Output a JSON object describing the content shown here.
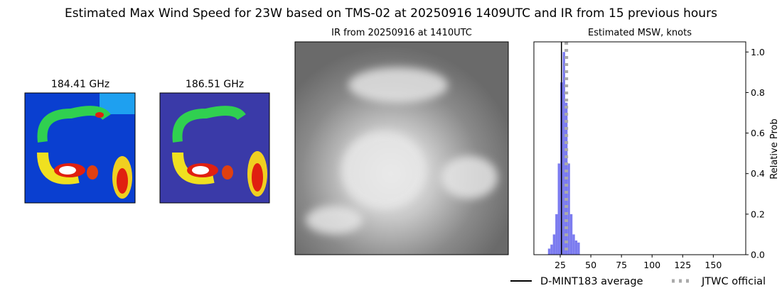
{
  "figure_title": "Estimated Max Wind Speed for 23W based on TMS-02 at 20250916 1409UTC and IR from 15 previous hours",
  "panels": [
    {
      "title": "184.41 GHz"
    },
    {
      "title": "186.51 GHz"
    },
    {
      "title": "IR from 20250916 at 1410UTC"
    }
  ],
  "chart_data": {
    "type": "histogram",
    "title": "Estimated MSW, knots",
    "y_label": "Relative Prob",
    "bins": [
      15,
      17,
      19,
      21,
      23,
      25,
      27,
      29,
      31,
      33,
      35,
      37,
      39,
      41
    ],
    "values": [
      0.03,
      0.05,
      0.1,
      0.2,
      0.45,
      0.85,
      1.0,
      0.75,
      0.45,
      0.2,
      0.1,
      0.07,
      0.06
    ],
    "color": "#7b7bef",
    "lines": [
      {
        "name": "D-MINT183 average",
        "value": 26,
        "color": "#000000",
        "style": "solid"
      },
      {
        "name": "JTWC official",
        "value": 30,
        "color": "#aaaaaa",
        "style": "dotted"
      }
    ],
    "xlim": [
      3.5,
      176.5
    ],
    "ylim": [
      0,
      1.05
    ],
    "xticks": [
      25,
      50,
      75,
      100,
      125,
      150
    ],
    "yticks": [
      {
        "value": 0,
        "label": "0.0"
      },
      {
        "value": 0.2,
        "label": "0.2"
      },
      {
        "value": 0.4,
        "label": "0.4"
      },
      {
        "value": 0.6,
        "label": "0.6"
      },
      {
        "value": 0.8,
        "label": "0.8"
      },
      {
        "value": 1,
        "label": "1.0"
      }
    ],
    "y_axis_side": "right",
    "legend": "lower right"
  }
}
